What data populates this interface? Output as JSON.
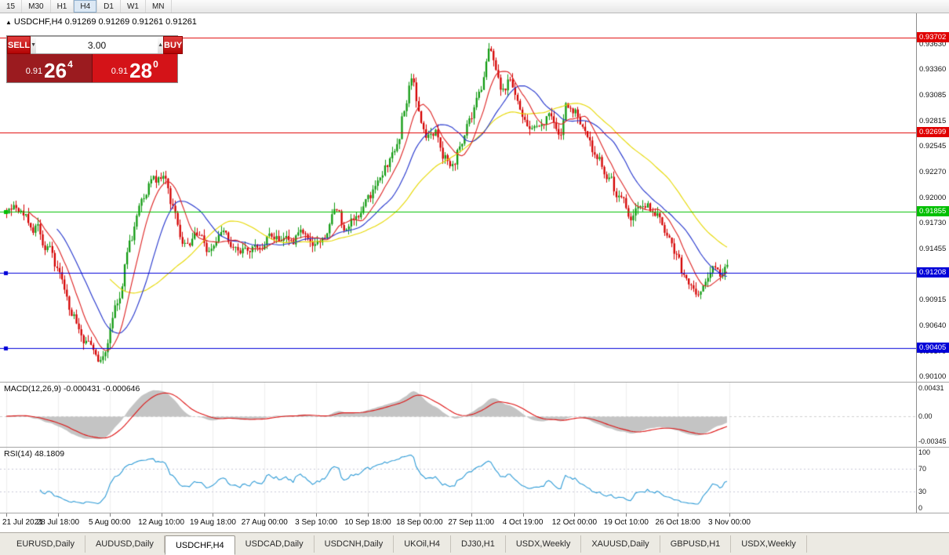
{
  "toolbar": {
    "timeframes": [
      "15",
      "M30",
      "H1",
      "H4",
      "D1",
      "W1",
      "MN"
    ],
    "active": "H4"
  },
  "chart": {
    "title": "USDCHF,H4 0.91269 0.91269 0.91261 0.91261",
    "up_color": "#119a11",
    "down_color": "#d40000",
    "ma_colors": [
      "#dd2222",
      "#2233cc",
      "#e6d800"
    ],
    "ma_periods": [
      10,
      22,
      44
    ]
  },
  "trade_panel": {
    "sell_label": "SELL",
    "buy_label": "BUY",
    "lot_size": "3.00",
    "bid": {
      "prefix": "0.91",
      "big": "26",
      "sup": "4"
    },
    "ask": {
      "prefix": "0.91",
      "big": "28",
      "sup": "0"
    }
  },
  "price_axis": {
    "ticks": [
      "0.93630",
      "0.93360",
      "0.93085",
      "0.92815",
      "0.92545",
      "0.92270",
      "0.92000",
      "0.91730",
      "0.91455",
      "0.91185",
      "0.90915",
      "0.90640",
      "0.90370",
      "0.90100"
    ],
    "levels": [
      {
        "value": "0.93702",
        "color": "#e00000"
      },
      {
        "value": "0.92699",
        "color": "#e00000"
      },
      {
        "value": "0.91855",
        "color": "#00c000"
      },
      {
        "value": "0.91208",
        "color": "#0000d8"
      },
      {
        "value": "0.90405",
        "color": "#0000d8"
      }
    ]
  },
  "macd": {
    "label": "MACD(12,26,9) -0.000431 -0.000646",
    "ticks": [
      "0.00431",
      "0.00",
      "-0.00345"
    ],
    "hist_color": "#c4c4c4",
    "signal_color": "#dd1111"
  },
  "rsi": {
    "label": "RSI(14) 48.1809",
    "ticks": [
      "100",
      "70",
      "30",
      "0"
    ],
    "line_color": "#2e9bd6"
  },
  "time_axis": [
    "21 Jul 2021",
    "28 Jul 18:00",
    "5 Aug 00:00",
    "12 Aug 10:00",
    "19 Aug 18:00",
    "27 Aug 00:00",
    "3 Sep 10:00",
    "10 Sep 18:00",
    "18 Sep 00:00",
    "27 Sep 11:00",
    "4 Oct 19:00",
    "12 Oct 00:00",
    "19 Oct 10:00",
    "26 Oct 18:00",
    "3 Nov 00:00"
  ],
  "tabs": {
    "items": [
      "EURUSD,Daily",
      "AUDUSD,Daily",
      "USDCHF,H4",
      "USDCAD,Daily",
      "USDCNH,Daily",
      "UKOil,H4",
      "DJ30,H1",
      "USDX,Weekly",
      "XAUUSD,Daily",
      "GBPUSD,H1",
      "USDX,Weekly"
    ],
    "active_index": 2
  },
  "chart_data": {
    "type": "candlestick",
    "symbol": "USDCHF",
    "timeframe": "H4",
    "candles": 300,
    "price_range": [
      0.901,
      0.9363
    ],
    "anchors": [
      [
        0,
        0.9185
      ],
      [
        6,
        0.9188
      ],
      [
        12,
        0.917
      ],
      [
        17,
        0.9148
      ],
      [
        22,
        0.9118
      ],
      [
        27,
        0.9078
      ],
      [
        33,
        0.9047
      ],
      [
        38,
        0.9028
      ],
      [
        41,
        0.9042
      ],
      [
        46,
        0.9088
      ],
      [
        51,
        0.915
      ],
      [
        56,
        0.9192
      ],
      [
        61,
        0.9218
      ],
      [
        66,
        0.9226
      ],
      [
        69,
        0.9192
      ],
      [
        74,
        0.9152
      ],
      [
        79,
        0.9162
      ],
      [
        84,
        0.9146
      ],
      [
        89,
        0.9166
      ],
      [
        93,
        0.9154
      ],
      [
        98,
        0.9146
      ],
      [
        105,
        0.9152
      ],
      [
        111,
        0.9162
      ],
      [
        118,
        0.9155
      ],
      [
        123,
        0.9166
      ],
      [
        128,
        0.915
      ],
      [
        132,
        0.9162
      ],
      [
        137,
        0.9188
      ],
      [
        141,
        0.9162
      ],
      [
        145,
        0.918
      ],
      [
        150,
        0.9202
      ],
      [
        154,
        0.9216
      ],
      [
        157,
        0.9232
      ],
      [
        162,
        0.9252
      ],
      [
        165,
        0.9292
      ],
      [
        168,
        0.9322
      ],
      [
        172,
        0.9282
      ],
      [
        175,
        0.9266
      ],
      [
        178,
        0.9272
      ],
      [
        182,
        0.9246
      ],
      [
        185,
        0.9232
      ],
      [
        188,
        0.9256
      ],
      [
        193,
        0.9292
      ],
      [
        196,
        0.9312
      ],
      [
        200,
        0.9356
      ],
      [
        203,
        0.9332
      ],
      [
        206,
        0.9312
      ],
      [
        209,
        0.933
      ],
      [
        212,
        0.9302
      ],
      [
        215,
        0.9282
      ],
      [
        220,
        0.9272
      ],
      [
        225,
        0.9286
      ],
      [
        230,
        0.9272
      ],
      [
        232,
        0.931
      ],
      [
        235,
        0.9292
      ],
      [
        240,
        0.9272
      ],
      [
        245,
        0.9242
      ],
      [
        250,
        0.9222
      ],
      [
        254,
        0.9198
      ],
      [
        259,
        0.9182
      ],
      [
        264,
        0.9196
      ],
      [
        269,
        0.9186
      ],
      [
        274,
        0.9168
      ],
      [
        277,
        0.9146
      ],
      [
        282,
        0.9112
      ],
      [
        287,
        0.9096
      ],
      [
        290,
        0.911
      ],
      [
        293,
        0.9126
      ],
      [
        296,
        0.9116
      ],
      [
        299,
        0.9126
      ]
    ]
  }
}
